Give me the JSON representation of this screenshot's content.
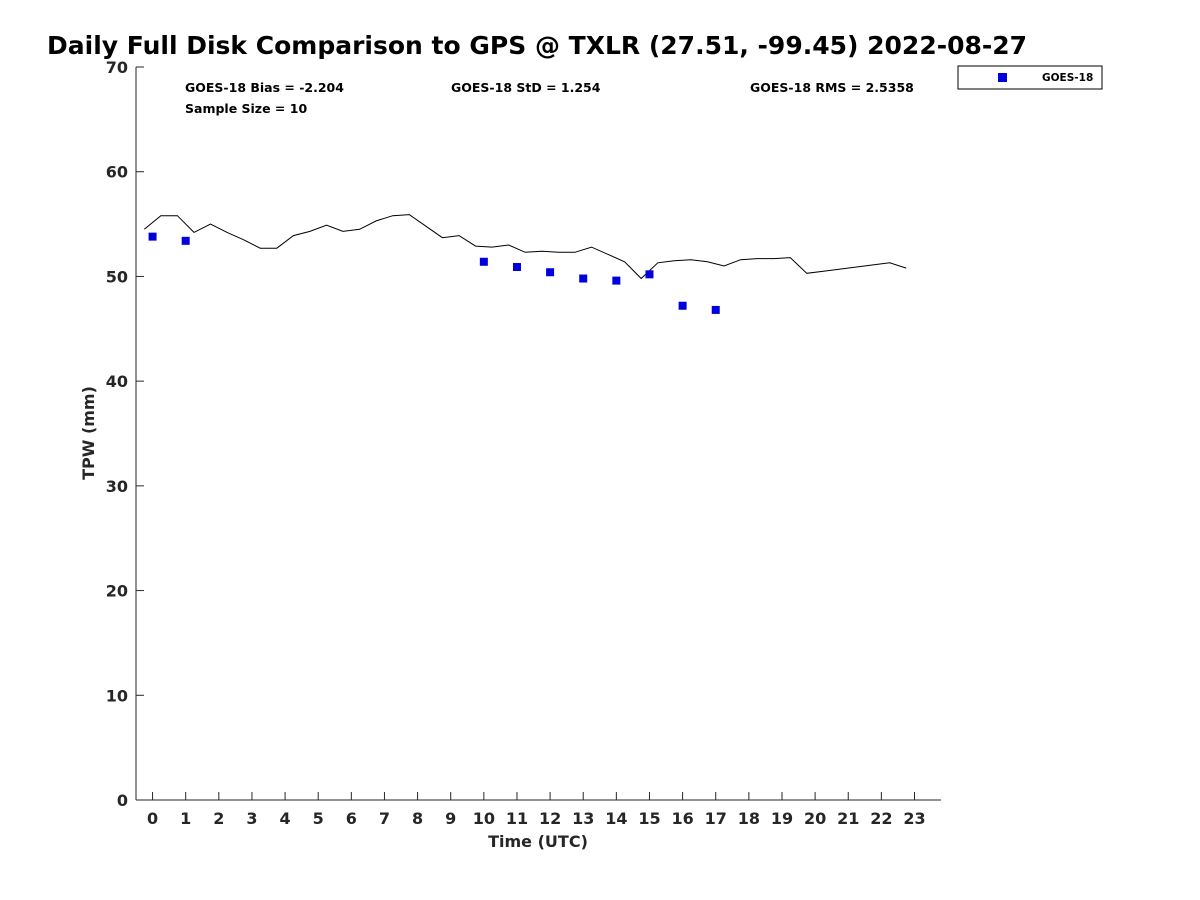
{
  "chart_data": {
    "type": "scatter",
    "title": "Daily Full Disk Comparison to GPS @ TXLR (27.51, -99.45) 2022-08-27",
    "xlabel": "Time (UTC)",
    "ylabel": "TPW (mm)",
    "xlim": [
      -0.5,
      23.8
    ],
    "ylim": [
      0,
      70
    ],
    "xticks": [
      0,
      1,
      2,
      3,
      4,
      5,
      6,
      7,
      8,
      9,
      10,
      11,
      12,
      13,
      14,
      15,
      16,
      17,
      18,
      19,
      20,
      21,
      22,
      23
    ],
    "yticks": [
      0,
      10,
      20,
      30,
      40,
      50,
      60,
      70
    ],
    "grid": false,
    "legend_position": "top-right, outside",
    "stats": {
      "bias": "GOES-18 Bias = -2.204",
      "std": "GOES-18 StD = 1.254",
      "rms": "GOES-18 RMS = 2.5358",
      "sample_size": "Sample Size = 10"
    },
    "series": [
      {
        "kind": "line",
        "color": "#000000",
        "x": [
          -0.25,
          0.25,
          0.75,
          1.25,
          1.75,
          2.25,
          2.75,
          3.25,
          3.75,
          4.25,
          4.75,
          5.25,
          5.75,
          6.25,
          6.75,
          7.25,
          7.75,
          8.25,
          8.75,
          9.25,
          9.75,
          10.25,
          10.75,
          11.25,
          11.75,
          12.25,
          12.75,
          13.25,
          13.75,
          14.25,
          14.75,
          15.25,
          15.75,
          16.25,
          16.75,
          17.25,
          17.75,
          18.25,
          18.75,
          19.25,
          19.75,
          20.25,
          20.75,
          21.25,
          21.75,
          22.25,
          22.75
        ],
        "y": [
          54.5,
          55.8,
          55.8,
          54.2,
          55.0,
          54.2,
          53.5,
          52.7,
          52.7,
          53.9,
          54.3,
          54.9,
          54.3,
          54.5,
          55.3,
          55.8,
          55.9,
          54.8,
          53.7,
          53.9,
          52.9,
          52.8,
          53.0,
          52.3,
          52.4,
          52.3,
          52.3,
          52.8,
          52.1,
          51.4,
          49.8,
          51.3,
          51.5,
          51.6,
          51.4,
          51.0,
          51.6,
          51.7,
          51.7,
          51.8,
          50.3,
          50.5,
          50.7,
          50.9,
          51.1,
          51.3,
          50.8
        ]
      },
      {
        "kind": "marker",
        "name": "GOES-18",
        "color": "#0000dd",
        "marker": "square",
        "x": [
          0,
          1,
          10,
          11,
          12,
          13,
          14,
          15,
          16,
          17
        ],
        "y": [
          53.8,
          53.4,
          51.4,
          50.9,
          50.4,
          49.8,
          49.6,
          50.2,
          47.2,
          46.8
        ]
      }
    ]
  }
}
